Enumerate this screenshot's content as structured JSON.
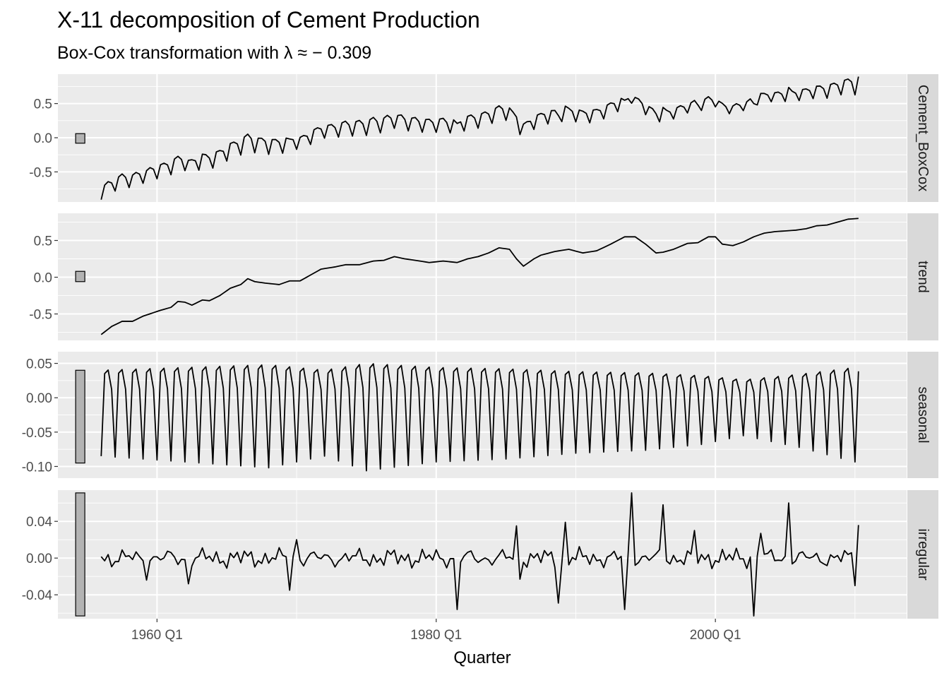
{
  "title": "X-11 decomposition of Cement Production",
  "subtitle": "Box-Cox transformation with λ ≈ − 0.309",
  "chart_data": {
    "type": "line",
    "xlabel": "Quarter",
    "x_start": "1956 Q1",
    "x_end": "2010 Q2",
    "x_range_years": [
      1952.9,
      2013.7
    ],
    "x_ticks": [
      {
        "year": 1960,
        "label": "1960 Q1"
      },
      {
        "year": 1980,
        "label": "1980 Q1"
      },
      {
        "year": 2000,
        "label": "2000 Q1"
      }
    ],
    "panels": [
      {
        "name": "Cement_BoxCox",
        "ylim": [
          -0.94,
          0.93
        ],
        "yticks": [
          {
            "v": -0.5,
            "label": "-0.5"
          },
          {
            "v": 0,
            "label": "0.0"
          },
          {
            "v": 0.5,
            "label": "0.5"
          }
        ],
        "scale_bar": [
          -0.08,
          0.06
        ],
        "generator": "trend_plus_seasonal_plus_irregular",
        "points": [
          [
            1956.0,
            -0.85
          ],
          [
            1958.0,
            -0.55
          ],
          [
            1961.0,
            -0.35
          ],
          [
            1964.0,
            -0.08
          ],
          [
            1969.0,
            0.05
          ],
          [
            1974.0,
            0.28
          ],
          [
            1980.0,
            0.28
          ],
          [
            1982.0,
            0.4
          ],
          [
            1983.0,
            0.12
          ],
          [
            1985.0,
            0.35
          ],
          [
            1989.5,
            0.52
          ],
          [
            1991.0,
            0.38
          ],
          [
            1993.5,
            0.5
          ],
          [
            1995.5,
            0.45
          ],
          [
            2000.0,
            0.6
          ],
          [
            2001.5,
            0.5
          ],
          [
            2003.0,
            0.6
          ],
          [
            2008.0,
            0.78
          ],
          [
            2010.25,
            0.72
          ]
        ]
      },
      {
        "name": "trend",
        "ylim": [
          -0.86,
          0.87
        ],
        "yticks": [
          {
            "v": -0.5,
            "label": "-0.5"
          },
          {
            "v": 0,
            "label": "0.0"
          },
          {
            "v": 0.5,
            "label": "0.5"
          }
        ],
        "scale_bar": [
          -0.06,
          0.08
        ],
        "points": [
          [
            1956.0,
            -0.78
          ],
          [
            1956.75,
            -0.67
          ],
          [
            1957.5,
            -0.6
          ],
          [
            1958.25,
            -0.6
          ],
          [
            1959.0,
            -0.53
          ],
          [
            1960.25,
            -0.45
          ],
          [
            1961.0,
            -0.41
          ],
          [
            1961.5,
            -0.33
          ],
          [
            1962.0,
            -0.34
          ],
          [
            1962.5,
            -0.38
          ],
          [
            1963.25,
            -0.31
          ],
          [
            1963.75,
            -0.32
          ],
          [
            1964.5,
            -0.25
          ],
          [
            1965.25,
            -0.15
          ],
          [
            1966.0,
            -0.1
          ],
          [
            1966.5,
            -0.02
          ],
          [
            1967.0,
            -0.06
          ],
          [
            1967.75,
            -0.08
          ],
          [
            1968.75,
            -0.1
          ],
          [
            1969.5,
            -0.05
          ],
          [
            1970.25,
            -0.05
          ],
          [
            1971.0,
            0.03
          ],
          [
            1971.75,
            0.11
          ],
          [
            1972.75,
            0.14
          ],
          [
            1973.5,
            0.17
          ],
          [
            1974.5,
            0.17
          ],
          [
            1975.5,
            0.22
          ],
          [
            1976.25,
            0.23
          ],
          [
            1977.0,
            0.28
          ],
          [
            1977.75,
            0.25
          ],
          [
            1978.5,
            0.23
          ],
          [
            1979.5,
            0.2
          ],
          [
            1980.5,
            0.22
          ],
          [
            1981.5,
            0.2
          ],
          [
            1982.25,
            0.25
          ],
          [
            1983.0,
            0.28
          ],
          [
            1983.75,
            0.33
          ],
          [
            1984.5,
            0.4
          ],
          [
            1985.25,
            0.38
          ],
          [
            1985.75,
            0.25
          ],
          [
            1986.25,
            0.15
          ],
          [
            1987.0,
            0.25
          ],
          [
            1987.5,
            0.3
          ],
          [
            1988.5,
            0.35
          ],
          [
            1989.5,
            0.38
          ],
          [
            1990.5,
            0.33
          ],
          [
            1991.5,
            0.36
          ],
          [
            1992.5,
            0.45
          ],
          [
            1993.5,
            0.55
          ],
          [
            1994.25,
            0.55
          ],
          [
            1995.0,
            0.45
          ],
          [
            1995.75,
            0.33
          ],
          [
            1996.25,
            0.34
          ],
          [
            1997.0,
            0.38
          ],
          [
            1998.0,
            0.46
          ],
          [
            1998.75,
            0.47
          ],
          [
            1999.5,
            0.55
          ],
          [
            2000.0,
            0.55
          ],
          [
            2000.5,
            0.45
          ],
          [
            2001.25,
            0.43
          ],
          [
            2002.0,
            0.48
          ],
          [
            2002.75,
            0.55
          ],
          [
            2003.5,
            0.6
          ],
          [
            2004.25,
            0.62
          ],
          [
            2005.0,
            0.63
          ],
          [
            2005.75,
            0.64
          ],
          [
            2006.5,
            0.66
          ],
          [
            2007.25,
            0.7
          ],
          [
            2008.0,
            0.71
          ],
          [
            2008.75,
            0.75
          ],
          [
            2009.5,
            0.79
          ],
          [
            2010.25,
            0.8
          ]
        ]
      },
      {
        "name": "seasonal",
        "ylim": [
          -0.117,
          0.067
        ],
        "yticks": [
          {
            "v": -0.1,
            "label": "-0.10"
          },
          {
            "v": -0.05,
            "label": "-0.05"
          },
          {
            "v": 0,
            "label": "0.00"
          },
          {
            "v": 0.05,
            "label": "0.05"
          }
        ],
        "scale_bar": [
          -0.095,
          0.04
        ],
        "pattern": [
          -0.085,
          0.035,
          0.04,
          0.012
        ],
        "amp_by_year": [
          [
            1956,
            1.0
          ],
          [
            1962,
            1.1
          ],
          [
            1968,
            1.2
          ],
          [
            1972,
            1.0
          ],
          [
            1975,
            1.25
          ],
          [
            1980,
            1.1
          ],
          [
            1985,
            1.05
          ],
          [
            1990,
            0.95
          ],
          [
            1995,
            0.9
          ],
          [
            1999,
            0.8
          ],
          [
            2002,
            0.65
          ],
          [
            2006,
            0.85
          ],
          [
            2010,
            1.1
          ]
        ]
      },
      {
        "name": "irregular",
        "ylim": [
          -0.066,
          0.074
        ],
        "yticks": [
          {
            "v": -0.04,
            "label": "-0.04"
          },
          {
            "v": 0,
            "label": "0.00"
          },
          {
            "v": 0.04,
            "label": "0.04"
          }
        ],
        "scale_bar": [
          -0.063,
          0.071
        ],
        "spikes": [
          [
            1959.25,
            -0.024
          ],
          [
            1962.25,
            -0.028
          ],
          [
            1969.5,
            -0.035
          ],
          [
            1970.0,
            0.02
          ],
          [
            1981.5,
            -0.056
          ],
          [
            1985.75,
            0.035
          ],
          [
            1986.0,
            -0.023
          ],
          [
            1988.75,
            -0.049
          ],
          [
            1989.25,
            0.039
          ],
          [
            1993.5,
            -0.056
          ],
          [
            1994.0,
            0.071
          ],
          [
            1996.25,
            0.058
          ],
          [
            1998.5,
            0.03
          ],
          [
            2002.75,
            -0.063
          ],
          [
            2003.25,
            0.027
          ],
          [
            2005.25,
            0.06
          ],
          [
            2010.0,
            -0.03
          ],
          [
            2010.25,
            0.036
          ]
        ]
      }
    ]
  }
}
